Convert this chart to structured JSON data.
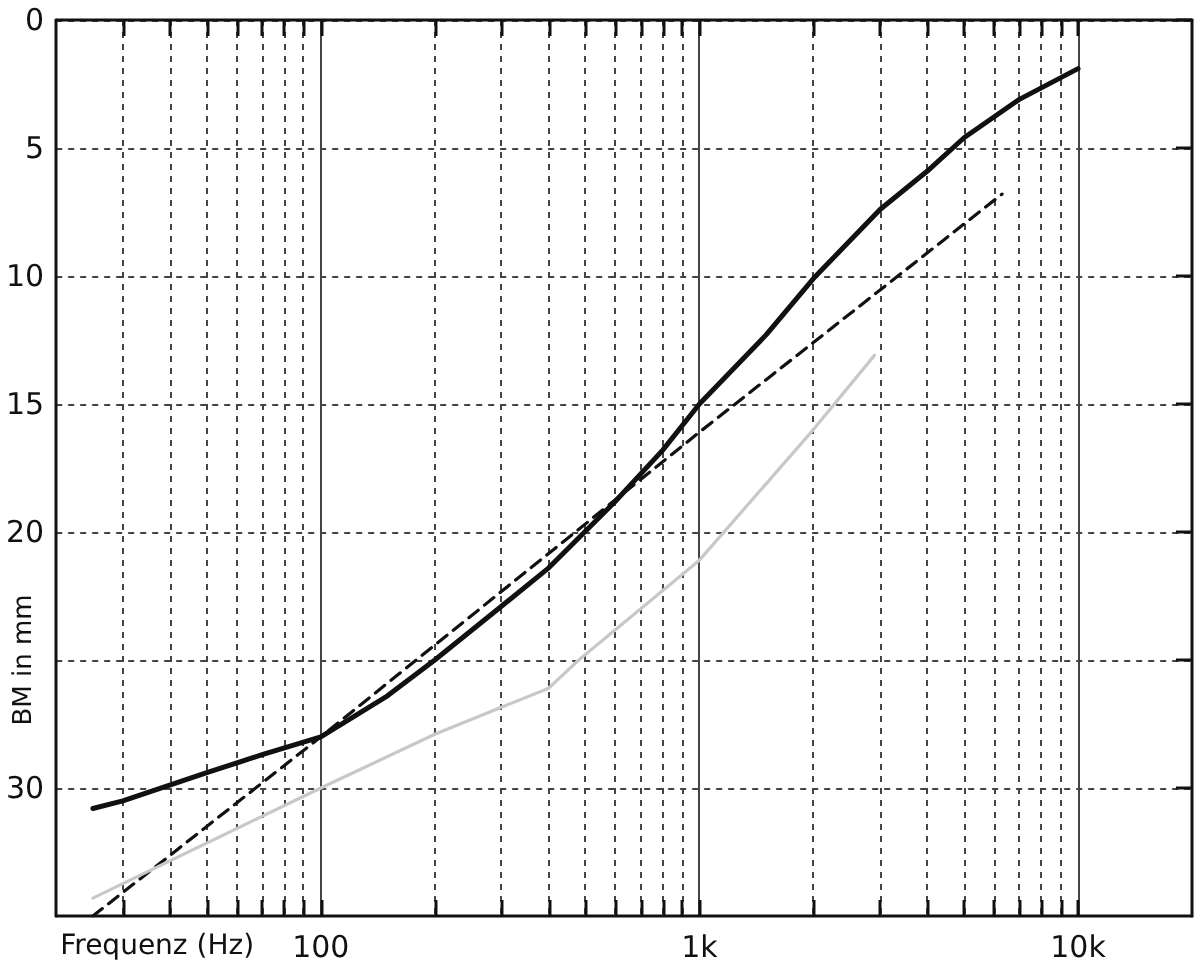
{
  "chart_data": {
    "type": "line",
    "xlabel": "Frequenz (Hz)",
    "ylabel": "BM in mm",
    "log": "x",
    "grid": true,
    "marker": "none",
    "xlim": [
      20,
      20000
    ],
    "ylim": [
      35,
      0
    ],
    "xticks": [
      {
        "value": 30,
        "label": null
      },
      {
        "value": 40,
        "label": null
      },
      {
        "value": 50,
        "label": null
      },
      {
        "value": 60,
        "label": null
      },
      {
        "value": 70,
        "label": null
      },
      {
        "value": 80,
        "label": null
      },
      {
        "value": 90,
        "label": null
      },
      100,
      {
        "value": 200,
        "label": null
      },
      {
        "value": 300,
        "label": null
      },
      {
        "value": 400,
        "label": null
      },
      {
        "value": 500,
        "label": null
      },
      {
        "value": 600,
        "label": null
      },
      {
        "value": 700,
        "label": null
      },
      {
        "value": 800,
        "label": null
      },
      {
        "value": 900,
        "label": null
      },
      {
        "value": 1000,
        "label": "1k"
      },
      {
        "value": 2000,
        "label": null
      },
      {
        "value": 3000,
        "label": null
      },
      {
        "value": 4000,
        "label": null
      },
      {
        "value": 5000,
        "label": null
      },
      {
        "value": 6000,
        "label": null
      },
      {
        "value": 7000,
        "label": null
      },
      {
        "value": 8000,
        "label": null
      },
      {
        "value": 9000,
        "label": null
      },
      {
        "value": 10000,
        "label": "10k"
      }
    ],
    "yticks": [
      0,
      5,
      10,
      15,
      20,
      {
        "value": 25,
        "label": null
      },
      30
    ],
    "series": [
      {
        "color": "#111111",
        "line_style": "solid",
        "x": [
          25,
          30,
          50,
          70,
          100,
          150,
          200,
          300,
          400,
          600,
          800,
          1000,
          1500,
          2000,
          3000,
          4000,
          5000,
          7000,
          10000
        ],
        "values": [
          30.8,
          30.5,
          29.4,
          28.7,
          28.0,
          26.4,
          25.0,
          22.9,
          21.4,
          18.8,
          16.8,
          15.0,
          12.3,
          10.1,
          7.4,
          5.9,
          4.6,
          3.1,
          1.9
        ]
      },
      {
        "color": "#111111",
        "line_style": "dashed",
        "x": [
          25,
          100,
          1000,
          6300
        ],
        "values": [
          35.0,
          28.0,
          16.1,
          6.8
        ]
      },
      {
        "color": "#c8c8c8",
        "line_style": "solid",
        "x": [
          25,
          100,
          200,
          400,
          480,
          1000,
          2000,
          2900
        ],
        "values": [
          34.3,
          30.0,
          27.9,
          26.1,
          25.0,
          21.1,
          16.0,
          13.1
        ]
      }
    ]
  }
}
